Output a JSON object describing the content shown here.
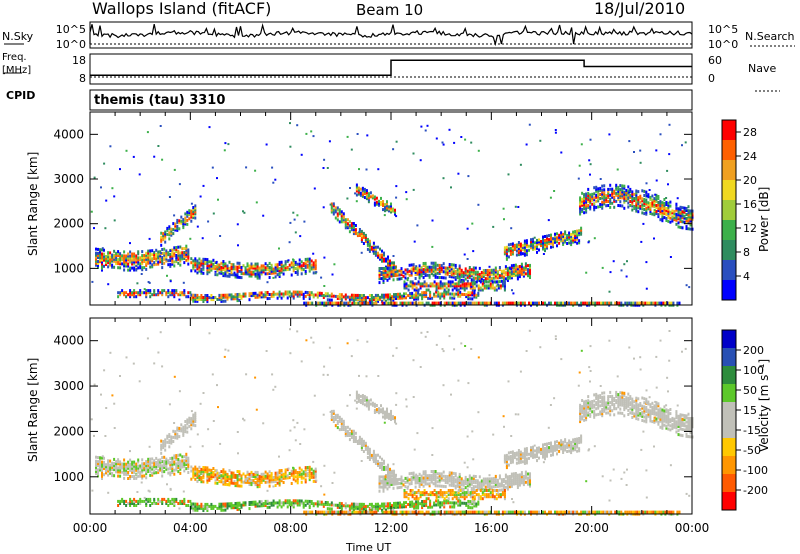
{
  "header": {
    "site": "Wallops Island (fitACF)",
    "beam": "Beam 10",
    "date": "18/Jul/2010"
  },
  "labels": {
    "nsky": "N.Sky",
    "nsearch": "N.Search",
    "freq": "Freq.",
    "mhz": "[MHz]",
    "nave": "Nave",
    "cpid": "CPID",
    "mode": "themis (tau) 3310",
    "xaxis": "Time UT"
  },
  "colors": {
    "power": [
      "#0000ff",
      "#2a4fbf",
      "#2f8c5f",
      "#3cb04a",
      "#a0cc3a",
      "#f0d820",
      "#f0a020",
      "#ff6000",
      "#ff0000"
    ],
    "velocity": [
      "#ff0000",
      "#ff5a00",
      "#ff9600",
      "#ffc800",
      "#c0c0b8",
      "#c0c0b8",
      "#5cc82a",
      "#2d8c3c",
      "#2850b4",
      "#0000c8"
    ],
    "gray": "#c0c0b8"
  },
  "chart_data": [
    {
      "type": "line",
      "name": "noise-panel",
      "yticks_left": [
        "10^5",
        "10^0"
      ],
      "yticks_right": [
        "10^5",
        "10^0"
      ]
    },
    {
      "type": "line",
      "name": "frequency-panel",
      "yticks_left": [
        "18",
        "8"
      ],
      "yticks_right": [
        "60",
        "0"
      ],
      "freq_steps": [
        [
          0,
          9.5
        ],
        [
          12,
          15.5
        ],
        [
          19.7,
          13
        ],
        [
          24,
          13
        ]
      ]
    },
    {
      "type": "heatmap",
      "name": "power-panel",
      "ylabel": "Slant Range [km]",
      "yticks": [
        "1000",
        "2000",
        "3000",
        "4000"
      ],
      "ylim": [
        180,
        4500
      ],
      "xlim": [
        0,
        24
      ],
      "xticks": [
        "00:00",
        "04:00",
        "08:00",
        "12:00",
        "16:00",
        "20:00",
        "00:00"
      ],
      "colorbar_label": "Power [dB]",
      "colorbar_ticks": [
        "4",
        "8",
        "12",
        "16",
        "20",
        "24",
        "28"
      ],
      "clim": [
        0,
        30
      ]
    },
    {
      "type": "heatmap",
      "name": "velocity-panel",
      "ylabel": "Slant Range [km]",
      "yticks": [
        "1000",
        "2000",
        "3000",
        "4000"
      ],
      "ylim": [
        180,
        4500
      ],
      "xlim": [
        0,
        24
      ],
      "xticks": [
        "00:00",
        "04:00",
        "08:00",
        "12:00",
        "16:00",
        "20:00",
        "00:00"
      ],
      "colorbar_label": "Velocity [m s⁻¹]",
      "colorbar_ticks": [
        "-200",
        "-100",
        "-50",
        "-15",
        "15",
        "50",
        "100",
        "200"
      ],
      "clim": [
        -250,
        250
      ]
    }
  ]
}
